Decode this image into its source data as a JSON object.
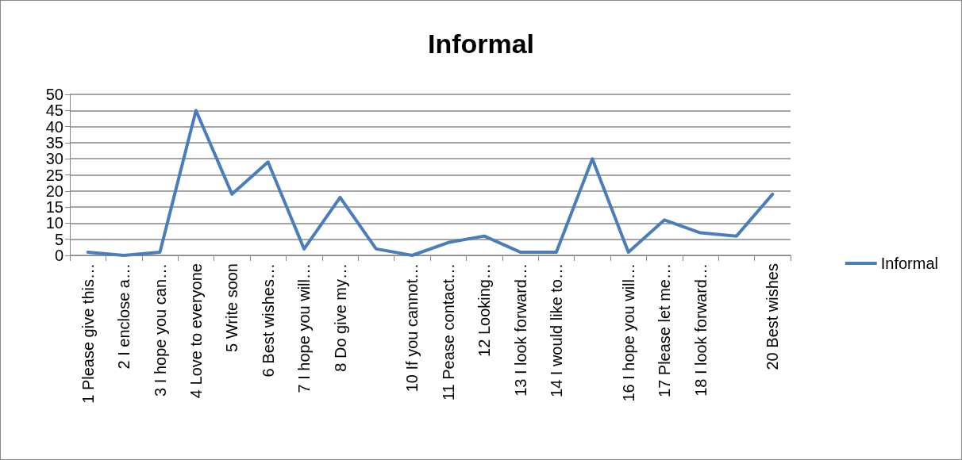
{
  "chart_data": {
    "type": "line",
    "title": "Informal",
    "categories": [
      "1 Please give this…",
      "2 I enclose a…",
      "3 I hope you can…",
      "4 Love to everyone",
      "5 Write soon",
      "6 Best wishes…",
      "7 I hope you will…",
      "8 Do give my…",
      null,
      "10 If you cannot…",
      "11 Pease contact…",
      "12 Looking…",
      "13 I look forward…",
      "14 I would like to…",
      null,
      "16 I hope you will…",
      "17 Please let me…",
      "18 I look forward…",
      null,
      "20 Best wishes"
    ],
    "series": [
      {
        "name": "Informal",
        "color": "#4a7ebb",
        "values": [
          1,
          0,
          1,
          45,
          19,
          29,
          2,
          18,
          2,
          0,
          4,
          6,
          1,
          1,
          30,
          1,
          11,
          7,
          6,
          19
        ]
      }
    ],
    "ylim": [
      0,
      50
    ],
    "yticks": [
      0,
      5,
      10,
      15,
      20,
      25,
      30,
      35,
      40,
      45,
      50
    ],
    "grid": "y",
    "legend": "right",
    "marker": "none",
    "line_style": "solid"
  }
}
